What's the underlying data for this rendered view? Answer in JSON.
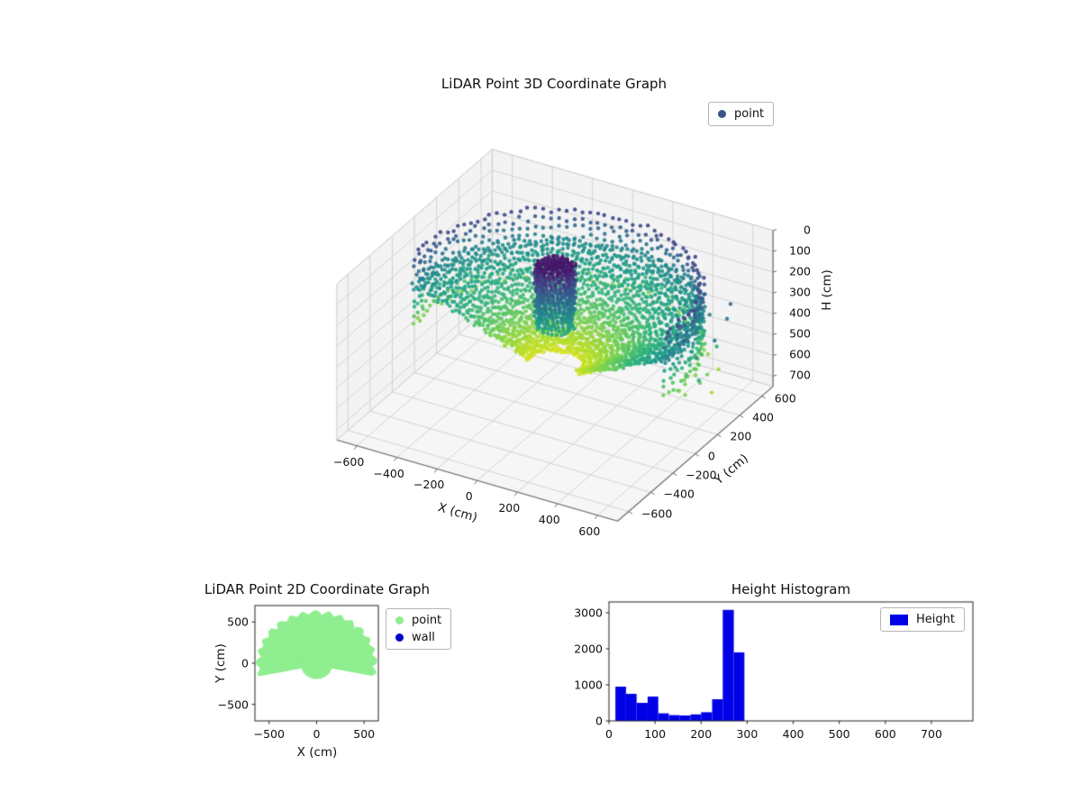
{
  "chart_data": [
    {
      "type": "scatter3d",
      "title": "LiDAR Point 3D Coordinate Graph",
      "xlabel": "X (cm)",
      "ylabel": "Y (cm)",
      "zlabel": "H (cm)",
      "xlim": [
        -700,
        700
      ],
      "ylim": [
        -700,
        700
      ],
      "hlim": [
        0,
        750
      ],
      "h_axis_inverted": true,
      "xticks": [
        -600,
        -400,
        -200,
        0,
        200,
        400,
        600
      ],
      "yticks": [
        -600,
        -400,
        -200,
        0,
        200,
        400,
        600
      ],
      "hticks": [
        0,
        100,
        200,
        300,
        400,
        500,
        600,
        700
      ],
      "view": {
        "azim_deg": -60,
        "elev_deg": 30
      },
      "legend": [
        {
          "label": "point",
          "marker_color": "#3a548a"
        }
      ],
      "colormap": "viridis",
      "colormap_stops": [
        "#440154",
        "#482878",
        "#3e4989",
        "#31688e",
        "#26828e",
        "#1f9e89",
        "#35b779",
        "#6ece58",
        "#b5de2b",
        "#fde725"
      ],
      "color_by": "height_cm",
      "color_range": [
        0,
        550
      ],
      "point_cloud": {
        "description": "LiDAR sweep: concentric floor rings colored yellow-green near center fading to teal, raised blue outer wall rim, dark purple center pillar, few outliers beyond rim on the right",
        "scan_angle_range_deg": [
          -12,
          192
        ],
        "floor_rings": {
          "radius_min_cm": 130,
          "radius_max_cm": 640,
          "radius_step_cm": 24,
          "angle_step_deg": 2.2,
          "height_at_inner_cm": 510,
          "height_slope_cm_per_cm": -0.5
        },
        "outer_wall": {
          "radius_cm": 640,
          "height_min_cm": 120,
          "height_max_cm": 440,
          "height_step_cm": 40
        },
        "center_pillar": {
          "radius_cm": 88,
          "height_min_cm": 40,
          "height_max_cm": 330
        },
        "outliers": {
          "count": 14,
          "angle_range_deg": [
            -10,
            30
          ],
          "radius_range_cm": [
            660,
            780
          ],
          "height_range_cm": [
            150,
            500
          ]
        }
      }
    },
    {
      "type": "scatter",
      "title": "LiDAR Point 2D Coordinate Graph",
      "xlabel": "X (cm)",
      "ylabel": "Y (cm)",
      "xlim": [
        -650,
        650
      ],
      "ylim": [
        -700,
        700
      ],
      "xticks": [
        -500,
        0,
        500
      ],
      "yticks": [
        -500,
        0,
        500
      ],
      "series": [
        {
          "name": "point",
          "color": "#90ee90",
          "region": {
            "type": "fan",
            "angle_range_deg": [
              -12,
              192
            ],
            "radius_max_cm": 615,
            "center_disk": {
              "center": [
                0,
                -25
              ],
              "radius_cm": 150
            }
          }
        },
        {
          "name": "wall",
          "color": "#0000cc",
          "points_visible": 0
        }
      ]
    },
    {
      "type": "histogram",
      "title": "Height Histogram",
      "series_label": "Height",
      "bar_color": "#0000e6",
      "bin_edges": [
        14,
        37,
        60,
        84,
        107,
        130,
        154,
        177,
        200,
        224,
        247,
        271,
        294
      ],
      "counts": [
        950,
        750,
        500,
        675,
        210,
        160,
        150,
        180,
        240,
        600,
        3080,
        1900
      ],
      "xlim": [
        0,
        790
      ],
      "ylim": [
        0,
        3300
      ],
      "xticks": [
        0,
        100,
        200,
        300,
        400,
        500,
        600,
        700
      ],
      "yticks": [
        0,
        1000,
        2000,
        3000
      ]
    }
  ]
}
